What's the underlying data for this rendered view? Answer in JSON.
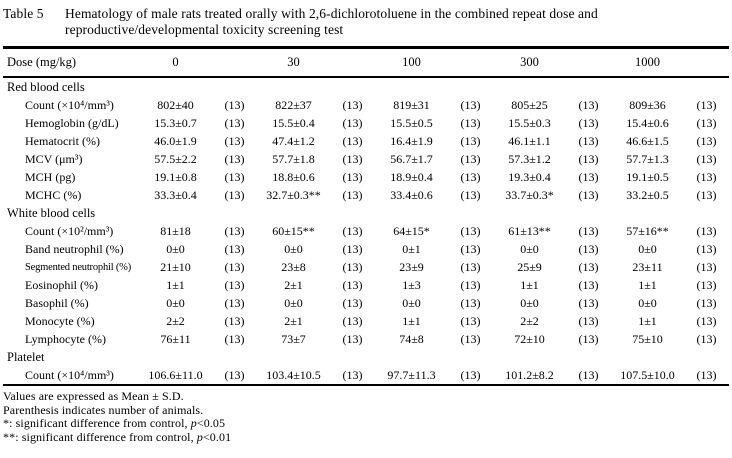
{
  "title": {
    "label": "Table 5",
    "line1": "Hematology of male rats treated orally with 2,6-dichlorotoluene in the combined repeat dose and",
    "line2": "reproductive/developmental toxicity screening test"
  },
  "table": {
    "header": {
      "label": "Dose (mg/kg)",
      "doses": [
        "0",
        "30",
        "100",
        "300",
        "1000"
      ]
    },
    "sections": [
      {
        "name": "Red blood cells",
        "rows": [
          {
            "label": "Count (×10⁴/mm³)",
            "values": [
              "802±40",
              "822±37",
              "819±31",
              "805±25",
              "809±36"
            ],
            "n": [
              "(13)",
              "(13)",
              "(13)",
              "(13)",
              "(13)"
            ]
          },
          {
            "label": "Hemoglobin (g/dL)",
            "values": [
              "15.3±0.7",
              "15.5±0.4",
              "15.5±0.5",
              "15.5±0.3",
              "15.4±0.6"
            ],
            "n": [
              "(13)",
              "(13)",
              "(13)",
              "(13)",
              "(13)"
            ]
          },
          {
            "label": "Hematocrit (%)",
            "values": [
              "46.0±1.9",
              "47.4±1.2",
              "16.4±1.9",
              "46.1±1.1",
              "46.6±1.5"
            ],
            "n": [
              "(13)",
              "(13)",
              "(13)",
              "(13)",
              "(13)"
            ]
          },
          {
            "label": "MCV (μm³)",
            "values": [
              "57.5±2.2",
              "57.7±1.8",
              "56.7±1.7",
              "57.3±1.2",
              "57.7±1.3"
            ],
            "n": [
              "(13)",
              "(13)",
              "(13)",
              "(13)",
              "(13)"
            ]
          },
          {
            "label": "MCH (pg)",
            "values": [
              "19.1±0.8",
              "18.8±0.6",
              "18.9±0.4",
              "19.3±0.4",
              "19.1±0.5"
            ],
            "n": [
              "(13)",
              "(13)",
              "(13)",
              "(13)",
              "(13)"
            ]
          },
          {
            "label": "MCHC (%)",
            "values": [
              "33.3±0.4",
              "32.7±0.3**",
              "33.4±0.6",
              "33.7±0.3*",
              "33.2±0.5"
            ],
            "n": [
              "(13)",
              "(13)",
              "(13)",
              "(13)",
              "(13)"
            ]
          }
        ]
      },
      {
        "name": "White blood cells",
        "rows": [
          {
            "label": "Count (×10²/mm³)",
            "values": [
              "81±18",
              "60±15**",
              "64±15*",
              "61±13**",
              "57±16**"
            ],
            "n": [
              "(13)",
              "(13)",
              "(13)",
              "(13)",
              "(13)"
            ]
          },
          {
            "label": "Band neutrophil (%)",
            "values": [
              "0±0",
              "0±0",
              "0±1",
              "0±0",
              "0±0"
            ],
            "n": [
              "(13)",
              "(13)",
              "(13)",
              "(13)",
              "(13)"
            ]
          },
          {
            "label": "Segmented neutrophil (%)",
            "values": [
              "21±10",
              "23±8",
              "23±9",
              "25±9",
              "23±11"
            ],
            "n": [
              "(13)",
              "(13)",
              "(13)",
              "(13)",
              "(13)"
            ]
          },
          {
            "label": "Eosinophil (%)",
            "values": [
              "1±1",
              "2±1",
              "1±3",
              "1±1",
              "1±1"
            ],
            "n": [
              "(13)",
              "(13)",
              "(13)",
              "(13)",
              "(13)"
            ]
          },
          {
            "label": "Basophil (%)",
            "values": [
              "0±0",
              "0±0",
              "0±0",
              "0±0",
              "0±0"
            ],
            "n": [
              "(13)",
              "(13)",
              "(13)",
              "(13)",
              "(13)"
            ]
          },
          {
            "label": "Monocyte (%)",
            "values": [
              "2±2",
              "2±1",
              "1±1",
              "2±2",
              "1±1"
            ],
            "n": [
              "(13)",
              "(13)",
              "(13)",
              "(13)",
              "(13)"
            ]
          },
          {
            "label": "Lymphocyte (%)",
            "values": [
              "76±11",
              "73±7",
              "74±8",
              "72±10",
              "75±10"
            ],
            "n": [
              "(13)",
              "(13)",
              "(13)",
              "(13)",
              "(13)"
            ]
          }
        ]
      },
      {
        "name": "Platelet",
        "rows": [
          {
            "label": "Count (×10⁴/mm³)",
            "values": [
              "106.6±11.0",
              "103.4±10.5",
              "97.7±11.3",
              "101.2±8.2",
              "107.5±10.0"
            ],
            "n": [
              "(13)",
              "(13)",
              "(13)",
              "(13)",
              "(13)"
            ]
          }
        ]
      }
    ]
  },
  "footnotes": [
    {
      "segments": [
        {
          "text": "Values are expressed as Mean ± S.D."
        }
      ]
    },
    {
      "segments": [
        {
          "text": "Parenthesis indicates number of animals."
        }
      ]
    },
    {
      "segments": [
        {
          "text": "*: significant difference from control, "
        },
        {
          "text": "p",
          "italic": true
        },
        {
          "text": "<0.05"
        }
      ]
    },
    {
      "segments": [
        {
          "text": "**: significant difference from control, "
        },
        {
          "text": "p",
          "italic": true
        },
        {
          "text": "<0.01"
        }
      ]
    }
  ]
}
